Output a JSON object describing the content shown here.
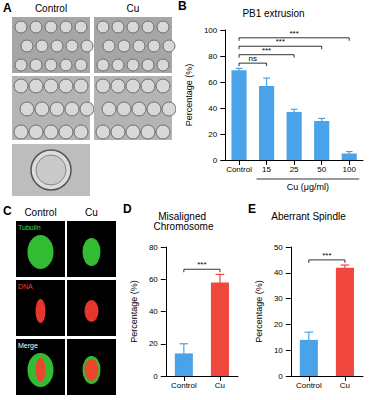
{
  "images": [
    {
      "panel": "A",
      "columns": [
        "Control",
        "Cu"
      ]
    },
    {
      "panel": "C",
      "columns": [
        "Control",
        "Cu"
      ],
      "rows": [
        {
          "label": "Tubulin",
          "color": "#3ddc3d"
        },
        {
          "label": "DNA",
          "color": "#ff3b2f"
        },
        {
          "label": "Merge",
          "color": "#ffffff"
        }
      ]
    }
  ],
  "chart_data": [
    {
      "panel": "B",
      "type": "bar",
      "title": "PB1 extrusion",
      "xlabel": "Cu (μg/ml)",
      "ylabel": "Percentage (%)",
      "categories": [
        "Control",
        "15",
        "25",
        "50",
        "100"
      ],
      "values": [
        69,
        57,
        37,
        30,
        5
      ],
      "errors": [
        1.5,
        6,
        2,
        2,
        1.5
      ],
      "color": "#4aa3e8",
      "ylim": [
        0,
        100
      ],
      "yticks": [
        0,
        20,
        40,
        60,
        80,
        100
      ],
      "significance": [
        {
          "from": "Control",
          "to": "15",
          "label": "ns"
        },
        {
          "from": "Control",
          "to": "25",
          "label": "***"
        },
        {
          "from": "Control",
          "to": "50",
          "label": "***"
        },
        {
          "from": "Control",
          "to": "100",
          "label": "***"
        }
      ]
    },
    {
      "panel": "D",
      "type": "bar",
      "title": "Misaligned Chromosome",
      "ylabel": "Percentage (%)",
      "categories": [
        "Control",
        "Cu"
      ],
      "values": [
        14,
        58
      ],
      "errors": [
        6,
        5
      ],
      "colors": [
        "#4aa3e8",
        "#f0483e"
      ],
      "ylim": [
        0,
        80
      ],
      "yticks": [
        0,
        20,
        40,
        60,
        80
      ],
      "significance": [
        {
          "from": "Control",
          "to": "Cu",
          "label": "***"
        }
      ]
    },
    {
      "panel": "E",
      "type": "bar",
      "title": "Aberrant Spindle",
      "ylabel": "Percentage (%)",
      "categories": [
        "Control",
        "Cu"
      ],
      "values": [
        14,
        42
      ],
      "errors": [
        3,
        1
      ],
      "colors": [
        "#4aa3e8",
        "#f0483e"
      ],
      "ylim": [
        0,
        50
      ],
      "yticks": [
        0,
        10,
        20,
        30,
        40,
        50
      ],
      "significance": [
        {
          "from": "Control",
          "to": "Cu",
          "label": "***"
        }
      ]
    }
  ]
}
